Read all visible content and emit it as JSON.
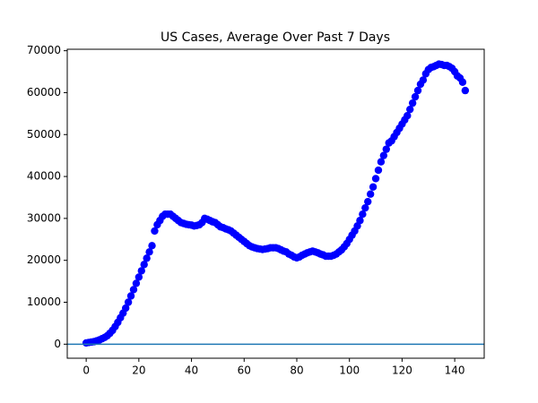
{
  "chart_data": {
    "type": "scatter",
    "title": "US Cases, Average Over Past 7 Days",
    "x": [
      0,
      1,
      2,
      3,
      4,
      5,
      6,
      7,
      8,
      9,
      10,
      11,
      12,
      13,
      14,
      15,
      16,
      17,
      18,
      19,
      20,
      21,
      22,
      23,
      24,
      25,
      26,
      27,
      28,
      29,
      30,
      31,
      32,
      33,
      34,
      35,
      36,
      37,
      38,
      39,
      40,
      41,
      42,
      43,
      44,
      45,
      46,
      47,
      48,
      49,
      50,
      51,
      52,
      53,
      54,
      55,
      56,
      57,
      58,
      59,
      60,
      61,
      62,
      63,
      64,
      65,
      66,
      67,
      68,
      69,
      70,
      71,
      72,
      73,
      74,
      75,
      76,
      77,
      78,
      79,
      80,
      81,
      82,
      83,
      84,
      85,
      86,
      87,
      88,
      89,
      90,
      91,
      92,
      93,
      94,
      95,
      96,
      97,
      98,
      99,
      100,
      101,
      102,
      103,
      104,
      105,
      106,
      107,
      108,
      109,
      110,
      111,
      112,
      113,
      114,
      115,
      116,
      117,
      118,
      119,
      120,
      121,
      122,
      123,
      124,
      125,
      126,
      127,
      128,
      129,
      130,
      131,
      132,
      133,
      134,
      135,
      136,
      137,
      138,
      139,
      140,
      141,
      142,
      143,
      144
    ],
    "series": [
      {
        "color": "#0000ff",
        "values": [
          300,
          400,
          500,
          600,
          800,
          1000,
          1300,
          1600,
          2000,
          2600,
          3300,
          4200,
          5200,
          6300,
          7400,
          8600,
          10000,
          11500,
          13000,
          14500,
          16000,
          17500,
          19000,
          20500,
          22000,
          23500,
          27000,
          28500,
          29500,
          30500,
          31000,
          31000,
          31000,
          30500,
          30000,
          29500,
          29000,
          28800,
          28600,
          28500,
          28400,
          28200,
          28300,
          28500,
          29000,
          30000,
          29800,
          29500,
          29200,
          29000,
          28500,
          28000,
          27800,
          27500,
          27300,
          27000,
          26500,
          26000,
          25500,
          25000,
          24500,
          24000,
          23500,
          23200,
          23000,
          22800,
          22700,
          22600,
          22700,
          22800,
          23000,
          23000,
          23000,
          22800,
          22500,
          22200,
          22000,
          21500,
          21200,
          20800,
          20600,
          20800,
          21200,
          21500,
          21800,
          22000,
          22200,
          22000,
          21800,
          21500,
          21300,
          21000,
          21000,
          21000,
          21200,
          21500,
          22000,
          22500,
          23200,
          24000,
          25000,
          26000,
          27000,
          28200,
          29500,
          31000,
          32500,
          34000,
          35800,
          37500,
          39500,
          41500,
          43500,
          45000,
          46500,
          48000,
          48500,
          49500,
          50500,
          51500,
          52500,
          53500,
          54500,
          56000,
          57500,
          59000,
          60500,
          62000,
          63000,
          64500,
          65500,
          66000,
          66200,
          66500,
          66800,
          66700,
          66500,
          66500,
          66200,
          65800,
          65000,
          64000,
          63500,
          62500,
          60500
        ]
      }
    ],
    "reference_line": {
      "value": 0,
      "color": "#1f77b4"
    },
    "xlim": [
      -7.2,
      151.2
    ],
    "ylim": [
      -3350,
      70350
    ],
    "xticks": [
      0,
      20,
      40,
      60,
      80,
      100,
      120,
      140
    ],
    "yticks": [
      0,
      10000,
      20000,
      30000,
      40000,
      50000,
      60000,
      70000
    ]
  }
}
